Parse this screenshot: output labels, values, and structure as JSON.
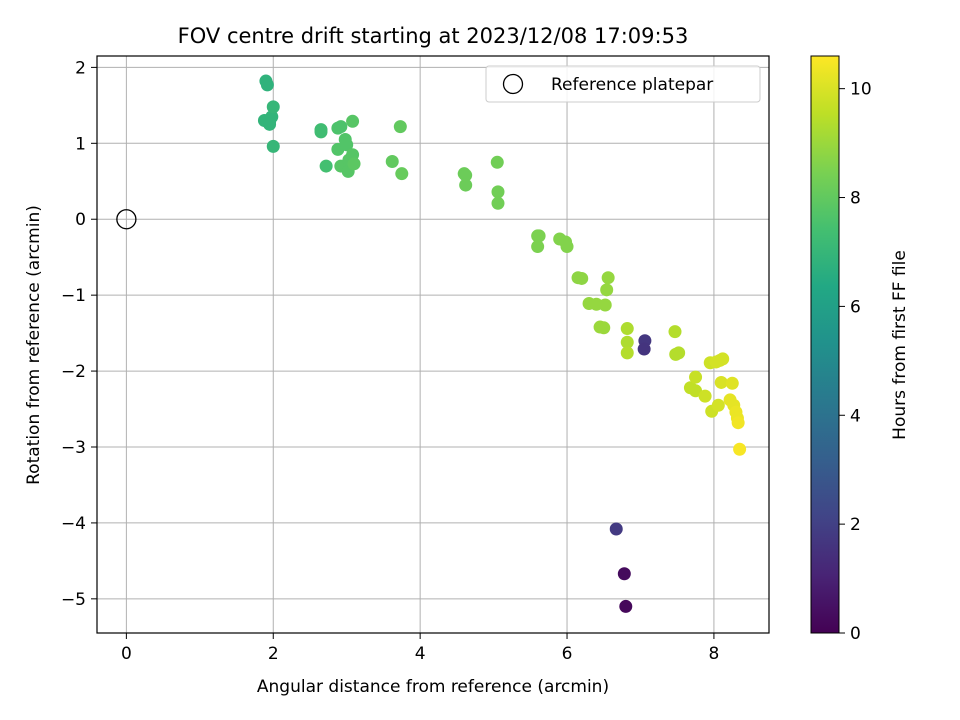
{
  "chart_data": {
    "type": "scatter",
    "title": "FOV centre drift starting at 2023/12/08 17:09:53",
    "xlabel": "Angular distance from reference (arcmin)",
    "ylabel": "Rotation from reference (arcmin)",
    "xlim": [
      -0.4,
      8.75
    ],
    "ylim": [
      -5.45,
      2.15
    ],
    "xticks": [
      0,
      2,
      4,
      6,
      8
    ],
    "xtick_labels": [
      "0",
      "2",
      "4",
      "6",
      "8"
    ],
    "yticks": [
      -5,
      -4,
      -3,
      -2,
      -1,
      0,
      1,
      2
    ],
    "ytick_labels": [
      "−5",
      "−4",
      "−3",
      "−2",
      "−1",
      "0",
      "1",
      "2"
    ],
    "grid": true,
    "legend": {
      "position": "top-right",
      "entries": [
        {
          "label": "Reference platepar",
          "marker": "open-circle"
        }
      ]
    },
    "reference_point": {
      "x": 0,
      "y": 0
    },
    "colorbar": {
      "label": "Hours from first FF file",
      "colormap": "viridis",
      "range": [
        0,
        10.6
      ],
      "ticks": [
        0,
        2,
        4,
        6,
        8,
        10
      ],
      "tick_labels": [
        "0",
        "2",
        "4",
        "6",
        "8",
        "10"
      ]
    },
    "points": [
      {
        "x": 6.8,
        "y": -5.1,
        "hours": 0.2
      },
      {
        "x": 6.78,
        "y": -4.67,
        "hours": 0.3
      },
      {
        "x": 6.67,
        "y": -4.08,
        "hours": 1.8
      },
      {
        "x": 7.06,
        "y": -1.6,
        "hours": 1.7
      },
      {
        "x": 7.05,
        "y": -1.71,
        "hours": 1.6
      },
      {
        "x": 1.9,
        "y": 1.82,
        "hours": 6.8
      },
      {
        "x": 1.92,
        "y": 1.77,
        "hours": 6.8
      },
      {
        "x": 1.88,
        "y": 1.3,
        "hours": 6.9
      },
      {
        "x": 1.95,
        "y": 1.28,
        "hours": 6.9
      },
      {
        "x": 1.98,
        "y": 1.35,
        "hours": 6.9
      },
      {
        "x": 2.0,
        "y": 1.48,
        "hours": 7.0
      },
      {
        "x": 2.0,
        "y": 0.96,
        "hours": 7.0
      },
      {
        "x": 1.95,
        "y": 1.25,
        "hours": 6.9
      },
      {
        "x": 2.65,
        "y": 1.18,
        "hours": 7.3
      },
      {
        "x": 2.65,
        "y": 1.15,
        "hours": 7.3
      },
      {
        "x": 2.72,
        "y": 0.7,
        "hours": 7.4
      },
      {
        "x": 2.88,
        "y": 1.2,
        "hours": 7.6
      },
      {
        "x": 2.92,
        "y": 1.22,
        "hours": 7.6
      },
      {
        "x": 2.88,
        "y": 0.92,
        "hours": 7.7
      },
      {
        "x": 2.98,
        "y": 1.05,
        "hours": 7.7
      },
      {
        "x": 3.0,
        "y": 0.98,
        "hours": 7.7
      },
      {
        "x": 2.92,
        "y": 0.7,
        "hours": 7.8
      },
      {
        "x": 3.02,
        "y": 0.63,
        "hours": 7.8
      },
      {
        "x": 3.03,
        "y": 0.78,
        "hours": 7.8
      },
      {
        "x": 3.08,
        "y": 0.85,
        "hours": 7.8
      },
      {
        "x": 3.1,
        "y": 0.73,
        "hours": 7.9
      },
      {
        "x": 3.08,
        "y": 1.29,
        "hours": 7.8
      },
      {
        "x": 3.62,
        "y": 0.76,
        "hours": 8.0
      },
      {
        "x": 3.73,
        "y": 1.22,
        "hours": 8.0
      },
      {
        "x": 3.75,
        "y": 0.6,
        "hours": 8.1
      },
      {
        "x": 4.6,
        "y": 0.6,
        "hours": 8.2
      },
      {
        "x": 4.62,
        "y": 0.58,
        "hours": 8.2
      },
      {
        "x": 4.62,
        "y": 0.45,
        "hours": 8.2
      },
      {
        "x": 5.05,
        "y": 0.75,
        "hours": 8.3
      },
      {
        "x": 5.06,
        "y": 0.36,
        "hours": 8.3
      },
      {
        "x": 5.06,
        "y": 0.21,
        "hours": 8.3
      },
      {
        "x": 5.6,
        "y": -0.22,
        "hours": 8.5
      },
      {
        "x": 5.62,
        "y": -0.22,
        "hours": 8.5
      },
      {
        "x": 5.6,
        "y": -0.36,
        "hours": 8.5
      },
      {
        "x": 5.9,
        "y": -0.26,
        "hours": 8.6
      },
      {
        "x": 5.98,
        "y": -0.3,
        "hours": 8.6
      },
      {
        "x": 6.0,
        "y": -0.36,
        "hours": 8.6
      },
      {
        "x": 6.15,
        "y": -0.77,
        "hours": 8.8
      },
      {
        "x": 6.2,
        "y": -0.78,
        "hours": 8.8
      },
      {
        "x": 6.56,
        "y": -0.77,
        "hours": 8.9
      },
      {
        "x": 6.54,
        "y": -0.93,
        "hours": 8.9
      },
      {
        "x": 6.3,
        "y": -1.11,
        "hours": 8.9
      },
      {
        "x": 6.4,
        "y": -1.12,
        "hours": 8.9
      },
      {
        "x": 6.52,
        "y": -1.13,
        "hours": 8.9
      },
      {
        "x": 6.45,
        "y": -1.42,
        "hours": 9.0
      },
      {
        "x": 6.5,
        "y": -1.43,
        "hours": 9.0
      },
      {
        "x": 6.82,
        "y": -1.44,
        "hours": 9.3
      },
      {
        "x": 6.82,
        "y": -1.62,
        "hours": 9.3
      },
      {
        "x": 6.82,
        "y": -1.76,
        "hours": 9.4
      },
      {
        "x": 7.47,
        "y": -1.48,
        "hours": 9.4
      },
      {
        "x": 7.48,
        "y": -1.78,
        "hours": 9.4
      },
      {
        "x": 7.52,
        "y": -1.76,
        "hours": 9.4
      },
      {
        "x": 7.68,
        "y": -2.22,
        "hours": 9.6
      },
      {
        "x": 7.75,
        "y": -2.08,
        "hours": 9.7
      },
      {
        "x": 7.75,
        "y": -2.26,
        "hours": 9.6
      },
      {
        "x": 7.88,
        "y": -2.33,
        "hours": 9.8
      },
      {
        "x": 7.95,
        "y": -1.89,
        "hours": 9.8
      },
      {
        "x": 8.03,
        "y": -1.88,
        "hours": 9.9
      },
      {
        "x": 8.08,
        "y": -1.86,
        "hours": 9.9
      },
      {
        "x": 8.12,
        "y": -1.84,
        "hours": 9.9
      },
      {
        "x": 8.1,
        "y": -2.15,
        "hours": 10.0
      },
      {
        "x": 8.25,
        "y": -2.16,
        "hours": 10.1
      },
      {
        "x": 7.97,
        "y": -2.53,
        "hours": 9.8
      },
      {
        "x": 8.06,
        "y": -2.45,
        "hours": 9.9
      },
      {
        "x": 8.22,
        "y": -2.38,
        "hours": 10.2
      },
      {
        "x": 8.27,
        "y": -2.45,
        "hours": 10.2
      },
      {
        "x": 8.3,
        "y": -2.54,
        "hours": 10.3
      },
      {
        "x": 8.32,
        "y": -2.62,
        "hours": 10.3
      },
      {
        "x": 8.33,
        "y": -2.68,
        "hours": 10.4
      },
      {
        "x": 8.35,
        "y": -3.03,
        "hours": 10.5
      }
    ]
  }
}
